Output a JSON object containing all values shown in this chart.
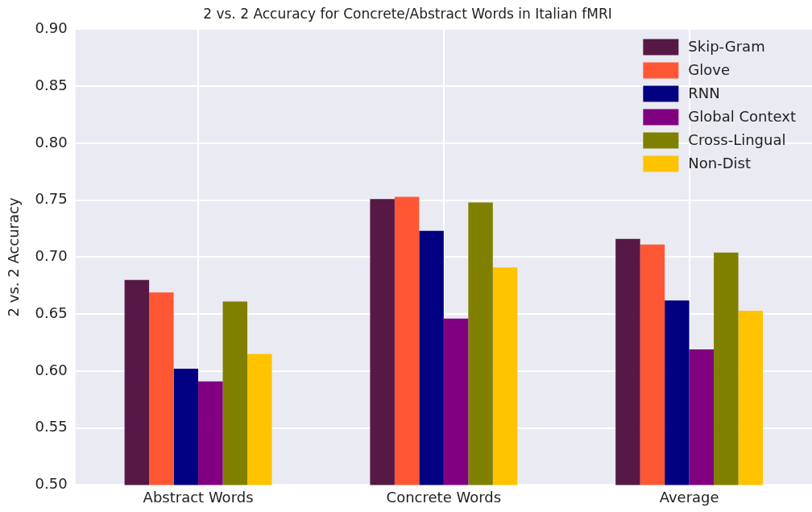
{
  "chart_data": {
    "type": "bar",
    "title": "2 vs. 2 Accuracy for Concrete/Abstract Words in Italian fMRI",
    "ylabel": "2 vs. 2 Accuracy",
    "categories": [
      "Abstract Words",
      "Concrete Words",
      "Average"
    ],
    "series": [
      {
        "name": "Skip-Gram",
        "color": "#561845",
        "values": [
          0.68,
          0.751,
          0.716
        ]
      },
      {
        "name": "Glove",
        "color": "#ff5733",
        "values": [
          0.669,
          0.753,
          0.711
        ]
      },
      {
        "name": "RNN",
        "color": "#000080",
        "values": [
          0.602,
          0.723,
          0.662
        ]
      },
      {
        "name": "Global Context",
        "color": "#800080",
        "values": [
          0.591,
          0.646,
          0.619
        ]
      },
      {
        "name": "Cross-Lingual",
        "color": "#808000",
        "values": [
          0.661,
          0.748,
          0.704
        ]
      },
      {
        "name": "Non-Dist",
        "color": "#ffc300",
        "values": [
          0.615,
          0.691,
          0.653
        ]
      }
    ],
    "ylim": [
      0.5,
      0.9
    ],
    "yticks": [
      {
        "value": 0.5,
        "label": "0.50"
      },
      0.55,
      {
        "value": 0.6,
        "label": "0.60"
      },
      0.65,
      {
        "value": 0.7,
        "label": "0.70"
      },
      0.75,
      {
        "value": 0.8,
        "label": "0.80"
      },
      0.85,
      {
        "value": 0.9,
        "label": "0.90"
      }
    ],
    "grid": true,
    "legend": "top right"
  }
}
